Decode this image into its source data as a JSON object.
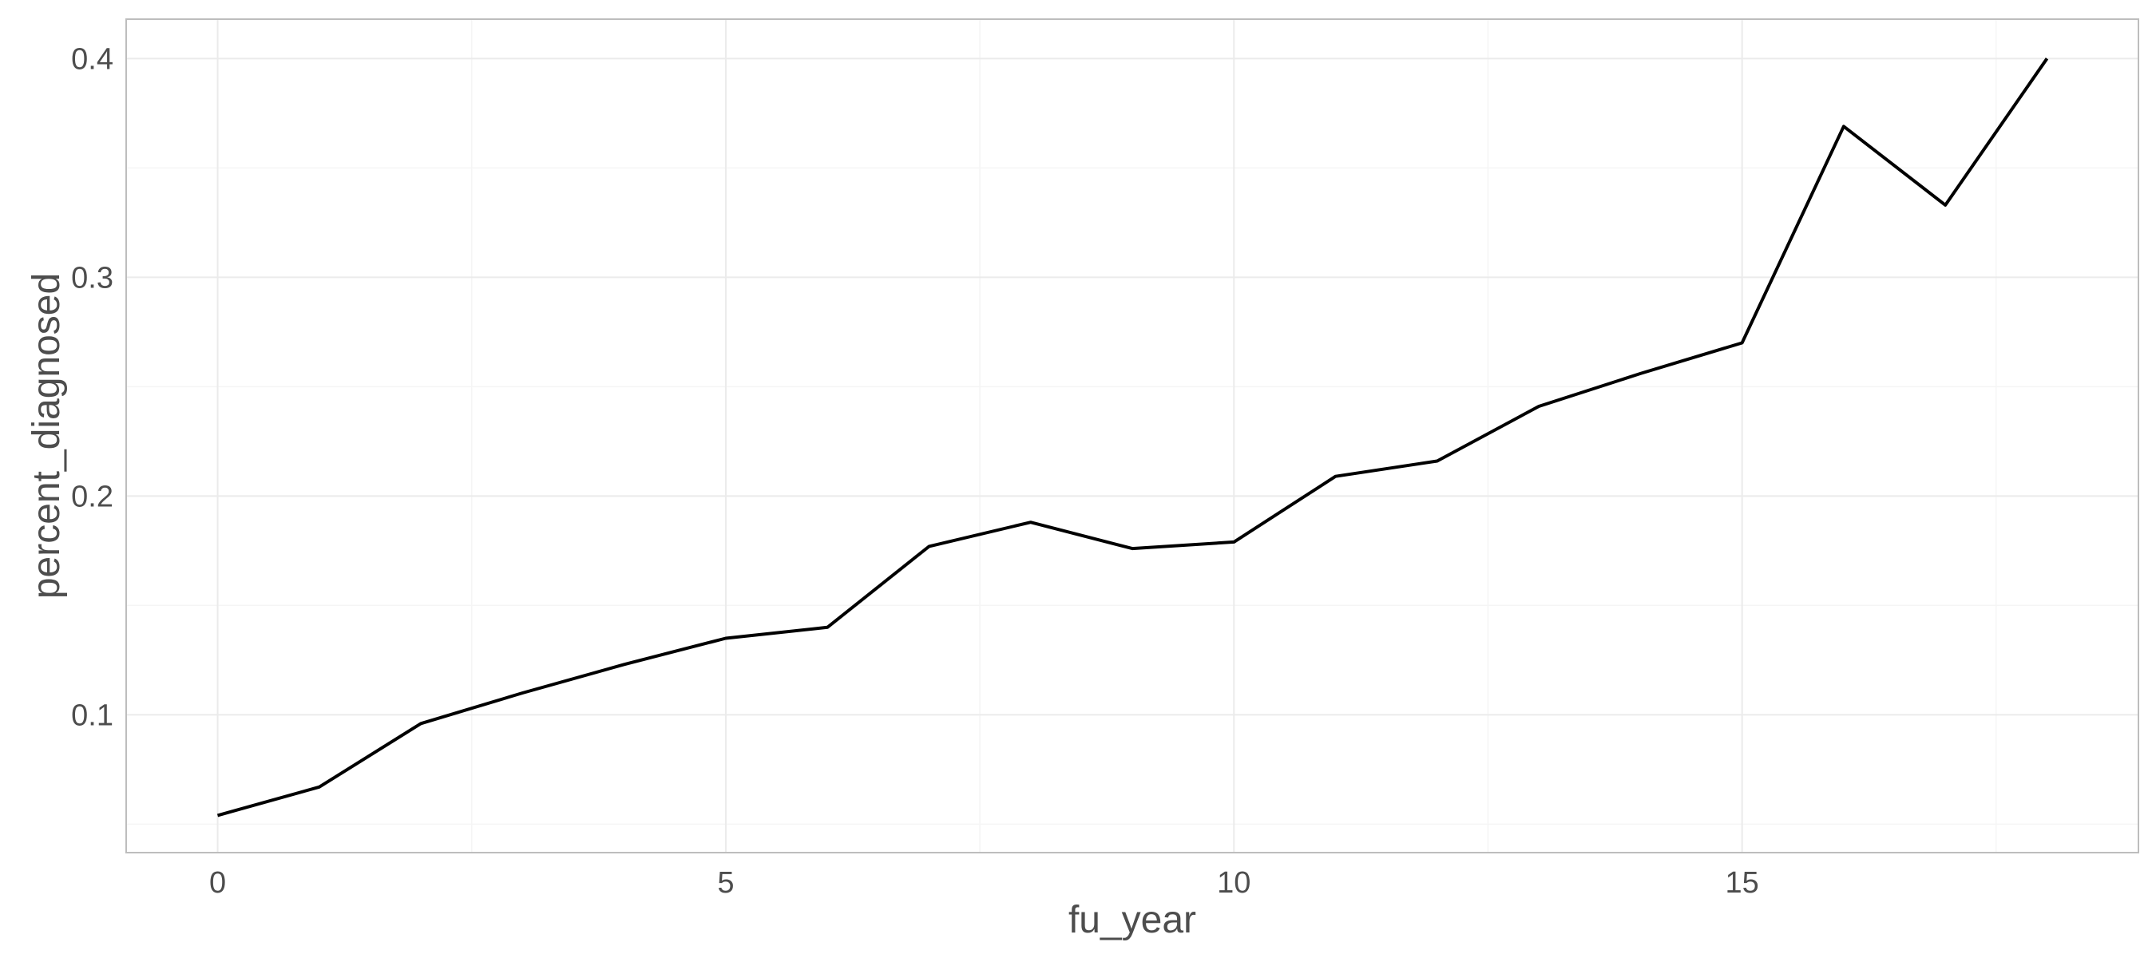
{
  "chart_data": {
    "type": "line",
    "title": "",
    "xlabel": "fu_year",
    "ylabel": "percent_diagnosed",
    "xlim": [
      -0.9,
      18.9
    ],
    "ylim": [
      0.037,
      0.418
    ],
    "x_ticks": [
      0,
      5,
      10,
      15
    ],
    "y_ticks": [
      0.1,
      0.2,
      0.3,
      0.4
    ],
    "x_tick_labels": [
      "0",
      "5",
      "10",
      "15"
    ],
    "y_tick_labels": [
      "0.1",
      "0.2",
      "0.3",
      "0.4"
    ],
    "x_minor": [
      2.5,
      7.5,
      12.5,
      17.5
    ],
    "y_minor": [
      0.05,
      0.15,
      0.25,
      0.35
    ],
    "grid": true,
    "legend": "none",
    "colors": {
      "line": "#000000",
      "grid_major": "#ebebeb",
      "grid_minor": "#f5f5f5",
      "border": "#bdbdbd",
      "text": "#4d4d4d"
    },
    "series": [
      {
        "x": [
          0,
          1,
          2,
          3,
          4,
          5,
          6,
          7,
          8,
          9,
          10,
          11,
          12,
          13,
          14,
          15,
          16,
          17,
          18
        ],
        "values": [
          0.054,
          0.067,
          0.096,
          0.11,
          0.123,
          0.135,
          0.14,
          0.177,
          0.188,
          0.176,
          0.179,
          0.209,
          0.216,
          0.241,
          0.256,
          0.27,
          0.369,
          0.333,
          0.4
        ]
      }
    ]
  }
}
